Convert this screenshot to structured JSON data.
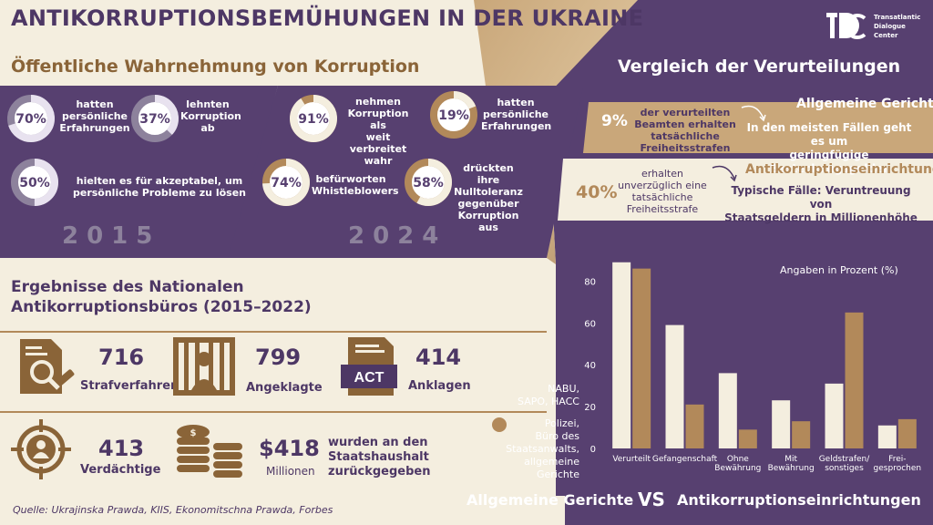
{
  "colors": {
    "purple": "#574070",
    "darkPurple": "#4d3765",
    "gold": "#b2895a",
    "cream": "#f4eedf",
    "white": "#ffffff"
  },
  "header": {
    "title": "ANTIKORRUPTIONSBEMÜHUNGEN IN DER UKRAINE",
    "logo_text": "Transatlantic Dialogue Center",
    "logo_letters": "TDC"
  },
  "perception": {
    "title": "Öffentliche Wahrnehmung von Korruption",
    "year2015": "2015",
    "year2024": "2024",
    "items2015": [
      {
        "value": 70,
        "label": "70%",
        "text": [
          "hatten",
          "persönliche",
          "Erfahrungen"
        ]
      },
      {
        "value": 37,
        "label": "37%",
        "text": [
          "lehnten",
          "Korruption",
          "ab"
        ]
      },
      {
        "value": 50,
        "label": "50%",
        "text": [
          "hielten es für akzeptabel, um",
          "persönliche Probleme zu lösen"
        ]
      }
    ],
    "items2024": [
      {
        "value": 91,
        "label": "91%",
        "text": [
          "nehmen",
          "Korruption als",
          "weit verbreitet",
          "wahr"
        ]
      },
      {
        "value": 19,
        "label": "19%",
        "text": [
          "hatten",
          "persönliche",
          "Erfahrungen"
        ]
      },
      {
        "value": 74,
        "label": "74%",
        "text": [
          "befürworten",
          "Whistleblowers"
        ]
      },
      {
        "value": 58,
        "label": "58%",
        "text": [
          "drückten ihre",
          "Nulltoleranz",
          "gegenüber",
          "Korruption aus"
        ]
      }
    ]
  },
  "comparison": {
    "title": "Vergleich der Verurteilungen",
    "general": {
      "pct": "9%",
      "text": [
        "der verurteilten",
        "Beamten erhalten",
        "tatsächliche",
        "Freiheitsstrafen"
      ],
      "title": "Allgemeine Gerichte",
      "desc": [
        "In den meisten Fällen geht es um",
        "geringfügige Bestechungsgelder"
      ]
    },
    "anti": {
      "pct": "40%",
      "text": [
        "erhalten",
        "unverzüglich eine",
        "tatsächliche",
        "Freiheitsstrafe"
      ],
      "title": "Antikorruptionseinrichtungen",
      "desc": [
        "Typische Fälle: Veruntreuung von",
        "Staatsgeldern in Millionenhöhe"
      ]
    }
  },
  "nabu": {
    "title": [
      "Ergebnisse des Nationalen",
      "Antikorruptionsbüros (2015–2022)"
    ],
    "stats": [
      {
        "value": "716",
        "label": "Strafverfahren",
        "icon": "case-file-icon"
      },
      {
        "value": "799",
        "label": "Angeklagte",
        "icon": "prison-bars-icon"
      },
      {
        "value": "414",
        "label": "Anklagen",
        "icon": "act-document-icon"
      },
      {
        "value": "413",
        "label": "Verdächtige",
        "icon": "target-person-icon"
      },
      {
        "value": "$418",
        "label": "Millionen",
        "icon": "coins-icon"
      }
    ],
    "returned": [
      "wurden an den",
      "Staatshaushalt",
      "zurückgegeben"
    ],
    "act_label": "ACT"
  },
  "source": "Quelle: Ukrajinska Prawda, KIIS, Ekonomitschna Prawda, Forbes",
  "chart_data": {
    "type": "bar",
    "categories": [
      [
        "Verurteilt"
      ],
      [
        "Gefangenschaft"
      ],
      [
        "Ohne",
        "Bewährung"
      ],
      [
        "Mit",
        "Bewährung"
      ],
      [
        "Geldstrafen/",
        "sonstiges"
      ],
      [
        "Frei-",
        "gesprochen"
      ]
    ],
    "series": [
      {
        "name": "NABU, SAPO, HACC",
        "color": "#f4eedf",
        "values": [
          89,
          59,
          36,
          23,
          31,
          11
        ]
      },
      {
        "name": "Polizei, Büro des Staatsanwalts, allgemeine Gerichte",
        "color": "#b2895a",
        "values": [
          86,
          21,
          9,
          13,
          65,
          14
        ]
      }
    ],
    "legend_lines": [
      [
        "NABU,",
        "SAPO, HACC"
      ],
      [
        "Polizei,",
        "Büro des",
        "Staatsanwalts,",
        "allgemeine",
        "Gerichte"
      ]
    ],
    "yticks": [
      0,
      20,
      40,
      60,
      80
    ],
    "ylim": [
      0,
      95
    ],
    "note": "Angaben in Prozent (%)",
    "footer": {
      "left": "Allgemeine Gerichte",
      "vs": "VS",
      "right": "Antikorruptionseinrichtungen"
    }
  }
}
